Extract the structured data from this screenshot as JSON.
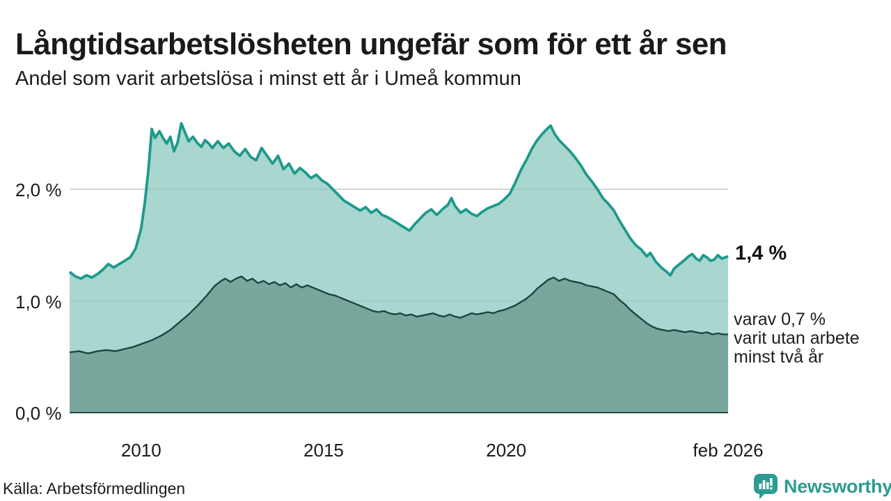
{
  "header": {
    "title": "Långtidsarbetslösheten ungefär som för ett år sen",
    "subtitle": "Andel som varit arbetslösa i minst ett år i Umeå kommun"
  },
  "annotations": {
    "latest_total": "1,4 %",
    "subset": "varav 0,7 %\nvarit utan arbete\nminst två år"
  },
  "footer": {
    "source": "Källa: Arbetsförmedlingen",
    "brand": "Newsworthy",
    "brand_icon": "chart-speech-bubble-icon"
  },
  "colors": {
    "line_total": "#1d9a8c",
    "fill_total": "#a9d6cf",
    "line_subset": "#1c453f",
    "fill_subset": "#79a69d",
    "gridline": "#d9d9d9",
    "gridline_overlay": "rgba(120,120,120,0.15)",
    "baseline": "#2b4a44",
    "text": "#1a1a1a",
    "brand": "#2d9c90"
  },
  "chart_data": {
    "type": "area",
    "title": "Långtidsarbetslösheten ungefär som för ett år sen",
    "subtitle": "Andel som varit arbetslösa i minst ett år i Umeå kommun",
    "unit": "%",
    "grid": "horizontal",
    "legend_position": "right-annotations",
    "x_axis": {
      "range": [
        2008.04,
        2026.08
      ],
      "ticks": [
        {
          "label": "2010",
          "year": 2010
        },
        {
          "label": "2015",
          "year": 2015
        },
        {
          "label": "2020",
          "year": 2020
        },
        {
          "label": "feb 2026",
          "year": 2026.08
        }
      ]
    },
    "y_axis": {
      "range": [
        0,
        2.7
      ],
      "ticks": [
        {
          "label": "0,0 %",
          "value": 0
        },
        {
          "label": "1,0 %",
          "value": 1
        },
        {
          "label": "2,0 %",
          "value": 2
        }
      ]
    },
    "series": [
      {
        "name": "arbetslösa minst ett år",
        "latest_value": 1.4,
        "latest_label": "1,4 %",
        "points": [
          [
            2008.04,
            1.26
          ],
          [
            2008.2,
            1.22
          ],
          [
            2008.35,
            1.2
          ],
          [
            2008.5,
            1.23
          ],
          [
            2008.65,
            1.21
          ],
          [
            2008.8,
            1.24
          ],
          [
            2008.95,
            1.28
          ],
          [
            2009.1,
            1.33
          ],
          [
            2009.25,
            1.3
          ],
          [
            2009.4,
            1.33
          ],
          [
            2009.55,
            1.36
          ],
          [
            2009.7,
            1.39
          ],
          [
            2009.85,
            1.47
          ],
          [
            2010.0,
            1.65
          ],
          [
            2010.1,
            1.88
          ],
          [
            2010.2,
            2.18
          ],
          [
            2010.29,
            2.54
          ],
          [
            2010.38,
            2.46
          ],
          [
            2010.5,
            2.52
          ],
          [
            2010.6,
            2.46
          ],
          [
            2010.7,
            2.41
          ],
          [
            2010.8,
            2.47
          ],
          [
            2010.9,
            2.34
          ],
          [
            2011.0,
            2.42
          ],
          [
            2011.1,
            2.59
          ],
          [
            2011.2,
            2.51
          ],
          [
            2011.3,
            2.43
          ],
          [
            2011.42,
            2.47
          ],
          [
            2011.55,
            2.41
          ],
          [
            2011.65,
            2.38
          ],
          [
            2011.75,
            2.44
          ],
          [
            2011.85,
            2.41
          ],
          [
            2011.95,
            2.37
          ],
          [
            2012.1,
            2.43
          ],
          [
            2012.25,
            2.37
          ],
          [
            2012.4,
            2.41
          ],
          [
            2012.55,
            2.34
          ],
          [
            2012.7,
            2.3
          ],
          [
            2012.85,
            2.36
          ],
          [
            2013.0,
            2.29
          ],
          [
            2013.15,
            2.26
          ],
          [
            2013.3,
            2.37
          ],
          [
            2013.45,
            2.3
          ],
          [
            2013.6,
            2.23
          ],
          [
            2013.75,
            2.3
          ],
          [
            2013.9,
            2.18
          ],
          [
            2014.05,
            2.23
          ],
          [
            2014.2,
            2.14
          ],
          [
            2014.35,
            2.19
          ],
          [
            2014.5,
            2.15
          ],
          [
            2014.65,
            2.1
          ],
          [
            2014.8,
            2.13
          ],
          [
            2014.95,
            2.08
          ],
          [
            2015.1,
            2.05
          ],
          [
            2015.25,
            2.0
          ],
          [
            2015.4,
            1.95
          ],
          [
            2015.55,
            1.9
          ],
          [
            2015.7,
            1.87
          ],
          [
            2015.85,
            1.84
          ],
          [
            2016.0,
            1.81
          ],
          [
            2016.15,
            1.84
          ],
          [
            2016.3,
            1.79
          ],
          [
            2016.45,
            1.82
          ],
          [
            2016.6,
            1.77
          ],
          [
            2016.75,
            1.75
          ],
          [
            2016.9,
            1.72
          ],
          [
            2017.05,
            1.69
          ],
          [
            2017.2,
            1.66
          ],
          [
            2017.35,
            1.63
          ],
          [
            2017.5,
            1.69
          ],
          [
            2017.65,
            1.74
          ],
          [
            2017.8,
            1.79
          ],
          [
            2017.95,
            1.82
          ],
          [
            2018.1,
            1.77
          ],
          [
            2018.25,
            1.82
          ],
          [
            2018.4,
            1.86
          ],
          [
            2018.5,
            1.92
          ],
          [
            2018.6,
            1.85
          ],
          [
            2018.75,
            1.79
          ],
          [
            2018.9,
            1.82
          ],
          [
            2019.05,
            1.78
          ],
          [
            2019.2,
            1.76
          ],
          [
            2019.35,
            1.8
          ],
          [
            2019.5,
            1.83
          ],
          [
            2019.65,
            1.85
          ],
          [
            2019.8,
            1.87
          ],
          [
            2019.95,
            1.91
          ],
          [
            2020.1,
            1.96
          ],
          [
            2020.25,
            2.06
          ],
          [
            2020.4,
            2.17
          ],
          [
            2020.55,
            2.26
          ],
          [
            2020.7,
            2.36
          ],
          [
            2020.85,
            2.44
          ],
          [
            2021.0,
            2.5
          ],
          [
            2021.12,
            2.54
          ],
          [
            2021.22,
            2.57
          ],
          [
            2021.32,
            2.5
          ],
          [
            2021.45,
            2.44
          ],
          [
            2021.6,
            2.39
          ],
          [
            2021.75,
            2.34
          ],
          [
            2021.9,
            2.28
          ],
          [
            2022.05,
            2.21
          ],
          [
            2022.2,
            2.13
          ],
          [
            2022.35,
            2.07
          ],
          [
            2022.5,
            2.0
          ],
          [
            2022.65,
            1.92
          ],
          [
            2022.8,
            1.87
          ],
          [
            2022.95,
            1.81
          ],
          [
            2023.1,
            1.72
          ],
          [
            2023.25,
            1.64
          ],
          [
            2023.4,
            1.56
          ],
          [
            2023.55,
            1.5
          ],
          [
            2023.7,
            1.46
          ],
          [
            2023.85,
            1.4
          ],
          [
            2023.95,
            1.43
          ],
          [
            2024.1,
            1.35
          ],
          [
            2024.25,
            1.3
          ],
          [
            2024.4,
            1.26
          ],
          [
            2024.5,
            1.23
          ],
          [
            2024.6,
            1.29
          ],
          [
            2024.75,
            1.33
          ],
          [
            2024.9,
            1.37
          ],
          [
            2025.0,
            1.4
          ],
          [
            2025.1,
            1.42
          ],
          [
            2025.2,
            1.38
          ],
          [
            2025.3,
            1.36
          ],
          [
            2025.4,
            1.41
          ],
          [
            2025.5,
            1.39
          ],
          [
            2025.6,
            1.36
          ],
          [
            2025.7,
            1.37
          ],
          [
            2025.8,
            1.41
          ],
          [
            2025.9,
            1.38
          ],
          [
            2026.0,
            1.39
          ],
          [
            2026.08,
            1.4
          ]
        ]
      },
      {
        "name": "varav utan arbete minst två år",
        "latest_value": 0.7,
        "latest_label": "varav 0,7 %",
        "points": [
          [
            2008.04,
            0.54
          ],
          [
            2008.3,
            0.55
          ],
          [
            2008.55,
            0.53
          ],
          [
            2008.8,
            0.55
          ],
          [
            2009.05,
            0.56
          ],
          [
            2009.3,
            0.55
          ],
          [
            2009.55,
            0.57
          ],
          [
            2009.8,
            0.59
          ],
          [
            2010.05,
            0.62
          ],
          [
            2010.3,
            0.65
          ],
          [
            2010.55,
            0.69
          ],
          [
            2010.8,
            0.74
          ],
          [
            2011.05,
            0.81
          ],
          [
            2011.3,
            0.88
          ],
          [
            2011.55,
            0.96
          ],
          [
            2011.8,
            1.05
          ],
          [
            2012.0,
            1.13
          ],
          [
            2012.15,
            1.17
          ],
          [
            2012.3,
            1.2
          ],
          [
            2012.45,
            1.17
          ],
          [
            2012.6,
            1.2
          ],
          [
            2012.75,
            1.22
          ],
          [
            2012.9,
            1.18
          ],
          [
            2013.05,
            1.2
          ],
          [
            2013.2,
            1.16
          ],
          [
            2013.35,
            1.18
          ],
          [
            2013.5,
            1.15
          ],
          [
            2013.65,
            1.17
          ],
          [
            2013.8,
            1.14
          ],
          [
            2013.95,
            1.16
          ],
          [
            2014.1,
            1.12
          ],
          [
            2014.25,
            1.15
          ],
          [
            2014.4,
            1.12
          ],
          [
            2014.55,
            1.14
          ],
          [
            2014.7,
            1.12
          ],
          [
            2014.85,
            1.1
          ],
          [
            2015.0,
            1.08
          ],
          [
            2015.15,
            1.06
          ],
          [
            2015.3,
            1.05
          ],
          [
            2015.45,
            1.03
          ],
          [
            2015.6,
            1.01
          ],
          [
            2015.75,
            0.99
          ],
          [
            2015.9,
            0.97
          ],
          [
            2016.05,
            0.95
          ],
          [
            2016.2,
            0.93
          ],
          [
            2016.35,
            0.91
          ],
          [
            2016.5,
            0.9
          ],
          [
            2016.65,
            0.91
          ],
          [
            2016.8,
            0.89
          ],
          [
            2016.95,
            0.88
          ],
          [
            2017.1,
            0.89
          ],
          [
            2017.25,
            0.87
          ],
          [
            2017.4,
            0.88
          ],
          [
            2017.55,
            0.86
          ],
          [
            2017.7,
            0.87
          ],
          [
            2017.85,
            0.88
          ],
          [
            2018.0,
            0.89
          ],
          [
            2018.15,
            0.87
          ],
          [
            2018.3,
            0.86
          ],
          [
            2018.45,
            0.88
          ],
          [
            2018.6,
            0.86
          ],
          [
            2018.75,
            0.85
          ],
          [
            2018.9,
            0.87
          ],
          [
            2019.05,
            0.89
          ],
          [
            2019.2,
            0.88
          ],
          [
            2019.35,
            0.89
          ],
          [
            2019.5,
            0.9
          ],
          [
            2019.65,
            0.89
          ],
          [
            2019.8,
            0.91
          ],
          [
            2019.95,
            0.92
          ],
          [
            2020.1,
            0.94
          ],
          [
            2020.25,
            0.96
          ],
          [
            2020.4,
            0.99
          ],
          [
            2020.55,
            1.02
          ],
          [
            2020.7,
            1.06
          ],
          [
            2020.85,
            1.11
          ],
          [
            2021.0,
            1.15
          ],
          [
            2021.15,
            1.19
          ],
          [
            2021.3,
            1.21
          ],
          [
            2021.45,
            1.18
          ],
          [
            2021.6,
            1.2
          ],
          [
            2021.75,
            1.18
          ],
          [
            2021.9,
            1.17
          ],
          [
            2022.05,
            1.16
          ],
          [
            2022.2,
            1.14
          ],
          [
            2022.35,
            1.13
          ],
          [
            2022.5,
            1.12
          ],
          [
            2022.65,
            1.1
          ],
          [
            2022.8,
            1.08
          ],
          [
            2022.95,
            1.06
          ],
          [
            2023.1,
            1.01
          ],
          [
            2023.25,
            0.97
          ],
          [
            2023.4,
            0.92
          ],
          [
            2023.55,
            0.88
          ],
          [
            2023.7,
            0.84
          ],
          [
            2023.85,
            0.8
          ],
          [
            2024.0,
            0.77
          ],
          [
            2024.15,
            0.75
          ],
          [
            2024.3,
            0.74
          ],
          [
            2024.45,
            0.73
          ],
          [
            2024.6,
            0.74
          ],
          [
            2024.75,
            0.73
          ],
          [
            2024.9,
            0.72
          ],
          [
            2025.05,
            0.73
          ],
          [
            2025.2,
            0.72
          ],
          [
            2025.35,
            0.71
          ],
          [
            2025.5,
            0.72
          ],
          [
            2025.65,
            0.7
          ],
          [
            2025.8,
            0.71
          ],
          [
            2025.95,
            0.7
          ],
          [
            2026.08,
            0.7
          ]
        ]
      }
    ]
  }
}
